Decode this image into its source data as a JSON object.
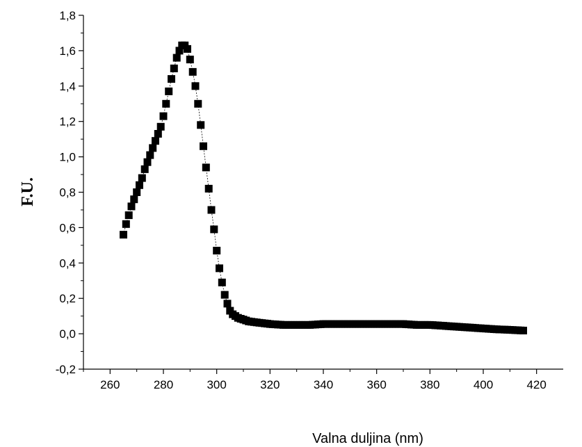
{
  "chart_data": {
    "type": "scatter",
    "title": "",
    "xlabel": "Valna duljina (nm)",
    "ylabel": "F.U.",
    "xlim": [
      250,
      430
    ],
    "ylim": [
      -0.2,
      1.8
    ],
    "xticks": [
      260,
      280,
      300,
      320,
      340,
      360,
      380,
      400,
      420
    ],
    "xtick_labels": [
      "260",
      "280",
      "300",
      "320",
      "340",
      "360",
      "380",
      "400",
      "420"
    ],
    "yticks": [
      -0.2,
      0.0,
      0.2,
      0.4,
      0.6,
      0.8,
      1.0,
      1.2,
      1.4,
      1.6,
      1.8
    ],
    "ytick_labels": [
      "-0,2",
      "0,0",
      "0,2",
      "0,4",
      "0,6",
      "0,8",
      "1,0",
      "1,2",
      "1,4",
      "1,6",
      "1,8"
    ],
    "grid": false,
    "legend": "none",
    "marker": "square",
    "marker_color": "#000000",
    "series": [
      {
        "x": [
          265,
          266,
          267,
          268,
          269,
          270,
          271,
          272,
          273,
          274,
          275,
          276,
          277,
          278,
          279,
          280,
          281,
          282,
          283,
          284,
          285,
          286,
          287,
          288,
          289,
          290,
          291,
          292,
          293,
          294,
          295,
          296,
          297,
          298,
          299,
          300,
          301,
          302,
          303,
          304,
          305,
          306,
          307,
          308,
          309,
          310,
          311,
          312,
          313,
          314,
          315,
          320,
          325,
          330,
          335,
          340,
          345,
          350,
          355,
          360,
          365,
          370,
          375,
          380,
          385,
          390,
          395,
          400,
          405,
          410,
          415
        ],
        "y": [
          0.56,
          0.62,
          0.67,
          0.72,
          0.76,
          0.8,
          0.84,
          0.88,
          0.93,
          0.97,
          1.01,
          1.05,
          1.09,
          1.13,
          1.17,
          1.23,
          1.3,
          1.37,
          1.44,
          1.5,
          1.56,
          1.6,
          1.63,
          1.63,
          1.61,
          1.55,
          1.48,
          1.4,
          1.3,
          1.18,
          1.06,
          0.94,
          0.82,
          0.7,
          0.59,
          0.47,
          0.37,
          0.29,
          0.22,
          0.17,
          0.13,
          0.11,
          0.1,
          0.09,
          0.085,
          0.08,
          0.075,
          0.07,
          0.068,
          0.066,
          0.064,
          0.055,
          0.05,
          0.05,
          0.05,
          0.055,
          0.055,
          0.055,
          0.055,
          0.055,
          0.055,
          0.055,
          0.05,
          0.05,
          0.045,
          0.04,
          0.035,
          0.03,
          0.025,
          0.022,
          0.018
        ]
      }
    ]
  }
}
